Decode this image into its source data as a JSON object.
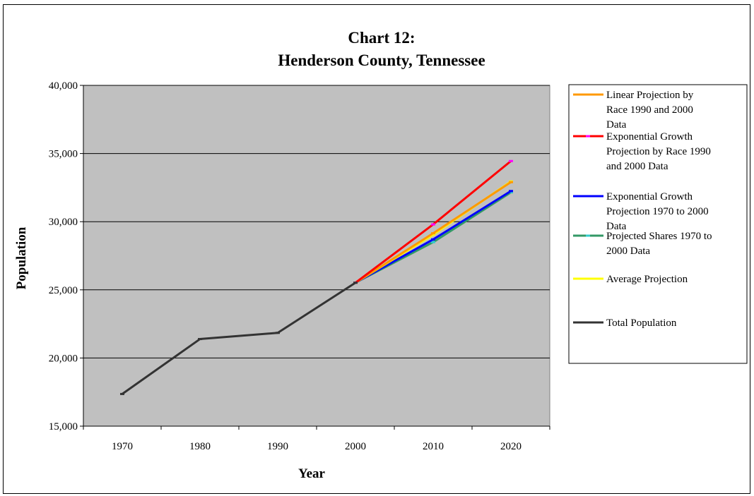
{
  "chart_data": {
    "type": "line",
    "title_line1": "Chart 12:",
    "title_line2": "Henderson County, Tennessee",
    "xlabel": "Year",
    "ylabel": "Population",
    "categories": [
      "1970",
      "1980",
      "1990",
      "2000",
      "2010",
      "2020"
    ],
    "y_ticks": [
      "15,000",
      "20,000",
      "25,000",
      "30,000",
      "35,000",
      "40,000"
    ],
    "ylim": [
      15000,
      40000
    ],
    "grid": true,
    "plot_background": "#c0c0c0",
    "legend_position": "right",
    "series": [
      {
        "name": "Linear Projection by Race 1990 and 2000 Data",
        "legend_lines": [
          "Linear Projection by",
          "Race 1990 and 2000",
          "Data"
        ],
        "color": "#ff9900",
        "values": [
          null,
          null,
          null,
          25522,
          29150,
          32900
        ]
      },
      {
        "name": "Exponential Growth Projection by Race 1990 and 2000 Data",
        "legend_lines": [
          "Exponential Growth",
          "Projection by Race 1990",
          "and 2000 Data"
        ],
        "color": "#ff0000",
        "marker_color": "#ff00ff",
        "values": [
          null,
          null,
          null,
          25522,
          29800,
          34450
        ]
      },
      {
        "name": "Exponential Growth Projection 1970 to 2000 Data",
        "legend_lines": [
          "Exponential Growth",
          "Projection 1970 to 2000",
          "Data"
        ],
        "color": "#0000ff",
        "values": [
          null,
          null,
          null,
          25522,
          28700,
          32250
        ]
      },
      {
        "name": "Projected Shares 1970 to 2000 Data",
        "legend_lines": [
          "Projected Shares 1970 to",
          "2000 Data"
        ],
        "color": "#339966",
        "marker_color": "#33cccc",
        "values": [
          null,
          null,
          null,
          25522,
          28500,
          32150
        ]
      },
      {
        "name": "Average Projection",
        "legend_lines": [
          "Average Projection"
        ],
        "color": "#ffff00",
        "values": [
          null,
          null,
          null,
          25522,
          29050,
          32950
        ]
      },
      {
        "name": "Total Population",
        "legend_lines": [
          "Total Population"
        ],
        "color": "#333333",
        "values": [
          17360,
          21390,
          21844,
          25522,
          null,
          null
        ]
      }
    ]
  }
}
